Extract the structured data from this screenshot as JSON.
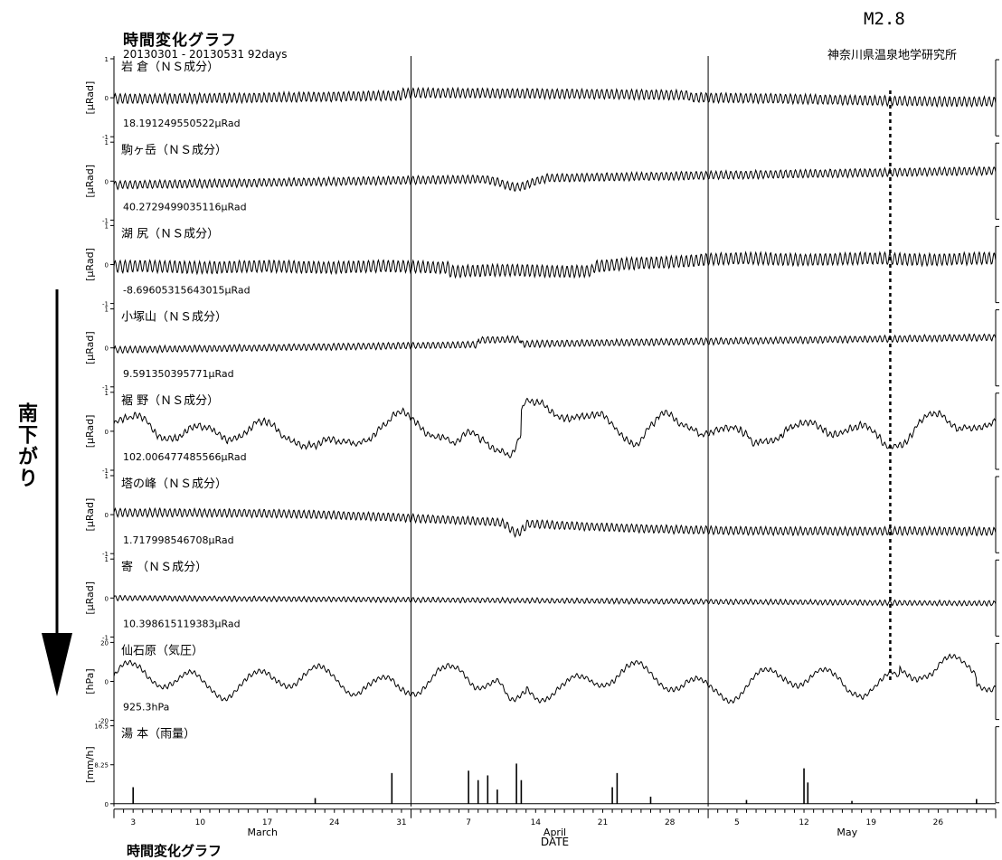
{
  "header": {
    "title": "時間変化グラフ",
    "period": "20130301 - 20130531 92days",
    "event_label": "M2.8",
    "organization": "神奈川県温泉地学研究所"
  },
  "side_note": "南下がり",
  "footer": {
    "title": "時間変化グラフ"
  },
  "chart_data": {
    "type": "line",
    "x_range": [
      "2013-03-01",
      "2013-05-31"
    ],
    "xlabel": "DATE",
    "x_ticks": [
      "3",
      "10",
      "17",
      "24",
      "31",
      "7",
      "14",
      "21",
      "28",
      "5",
      "12",
      "19",
      "26"
    ],
    "month_labels": [
      "March",
      "April",
      "May"
    ],
    "event_date": "2013-05-21",
    "panels": [
      {
        "name": "岩 倉（ＮＳ成分）",
        "unit": "[μRad]",
        "offset_label": "18.191249550522μRad",
        "ylim": [
          -1,
          1
        ],
        "color": "#000000"
      },
      {
        "name": "駒ヶ岳（ＮＳ成分）",
        "unit": "[μRad]",
        "offset_label": "40.2729499035116μRad",
        "ylim": [
          -1,
          1
        ],
        "color": "#000000"
      },
      {
        "name": "湖 尻（ＮＳ成分）",
        "unit": "[μRad]",
        "offset_label": "-8.69605315643015μRad",
        "ylim": [
          -1,
          1
        ],
        "color": "#000000"
      },
      {
        "name": "小塚山（ＮＳ成分）",
        "unit": "[μRad]",
        "offset_label": "9.591350395771μRad",
        "ylim": [
          -1,
          1
        ],
        "color": "#000000"
      },
      {
        "name": "裾 野（ＮＳ成分）",
        "unit": "[μRad]",
        "offset_label": "102.006477485566μRad",
        "ylim": [
          -1,
          1
        ],
        "color": "#000000"
      },
      {
        "name": "塔の峰（ＮＳ成分）",
        "unit": "[μRad]",
        "offset_label": "1.717998546708μRad",
        "ylim": [
          -1,
          1
        ],
        "color": "#000000"
      },
      {
        "name": "寄 （ＮＳ成分）",
        "unit": "[μRad]",
        "offset_label": "10.398615119383μRad",
        "ylim": [
          -1,
          1
        ],
        "color": "#000000"
      },
      {
        "name": "仙石原（気圧）",
        "unit": "[hPa]",
        "offset_label": "925.3hPa",
        "ylim": [
          -20,
          20
        ],
        "color": "#000000"
      },
      {
        "name": "湯 本（雨量）",
        "unit": "[mm/h]",
        "offset_label": "",
        "ylim": [
          0,
          16.5
        ],
        "color": "#000000",
        "kind": "bar"
      }
    ],
    "rain_events": [
      {
        "day": 2,
        "value": 3.5
      },
      {
        "day": 21,
        "value": 1.2
      },
      {
        "day": 29,
        "value": 6.5
      },
      {
        "day": 37,
        "value": 7.0
      },
      {
        "day": 38,
        "value": 5.0
      },
      {
        "day": 39,
        "value": 6.0
      },
      {
        "day": 40,
        "value": 3.0
      },
      {
        "day": 42,
        "value": 8.5
      },
      {
        "day": 42.5,
        "value": 5.0
      },
      {
        "day": 52,
        "value": 3.5
      },
      {
        "day": 52.5,
        "value": 6.5
      },
      {
        "day": 56,
        "value": 1.5
      },
      {
        "day": 66,
        "value": 0.8
      },
      {
        "day": 72,
        "value": 7.5
      },
      {
        "day": 72.4,
        "value": 4.5
      },
      {
        "day": 77,
        "value": 0.6
      },
      {
        "day": 90,
        "value": 1.0
      }
    ]
  }
}
